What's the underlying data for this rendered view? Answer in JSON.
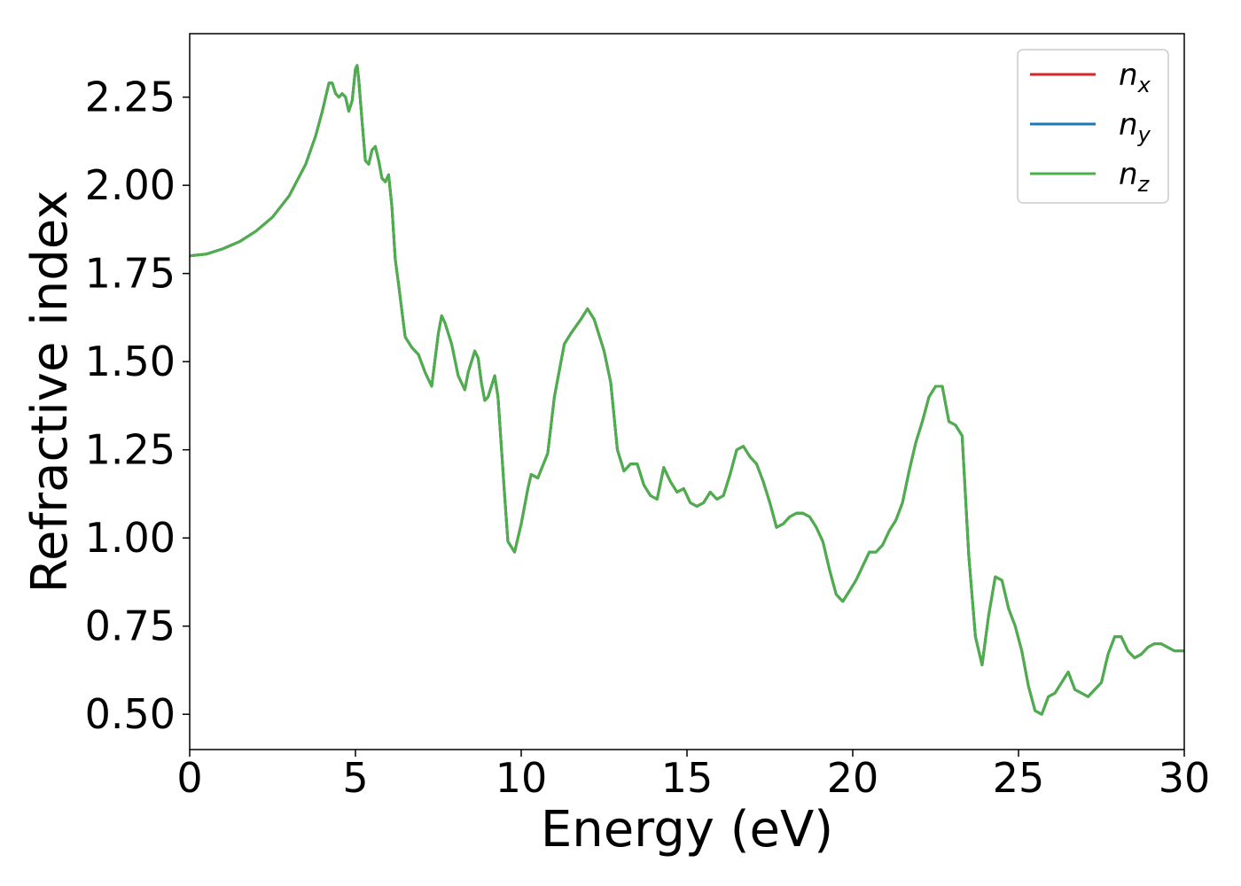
{
  "chart_data": {
    "type": "line",
    "xlabel": "Energy (eV)",
    "ylabel": "Refractive index",
    "xlim": [
      0,
      30
    ],
    "ylim": [
      0.4,
      2.43
    ],
    "grid": false,
    "legend_position": "top-right",
    "x_ticks": [
      "0",
      "5",
      "10",
      "15",
      "20",
      "25",
      "30"
    ],
    "y_ticks": [
      "0.50",
      "0.75",
      "1.00",
      "1.25",
      "1.50",
      "1.75",
      "2.00",
      "2.25"
    ],
    "series": [
      {
        "name": "n",
        "subscript": "x",
        "color": "#d62728"
      },
      {
        "name": "n",
        "subscript": "y",
        "color": "#1f77b4"
      },
      {
        "name": "n",
        "subscript": "z",
        "color": "#4daf4a"
      }
    ],
    "x": [
      0,
      0.5,
      1.0,
      1.5,
      2.0,
      2.5,
      3.0,
      3.5,
      3.8,
      4.0,
      4.2,
      4.3,
      4.4,
      4.5,
      4.6,
      4.7,
      4.8,
      4.9,
      5.0,
      5.05,
      5.1,
      5.2,
      5.3,
      5.4,
      5.5,
      5.6,
      5.7,
      5.8,
      5.9,
      6.0,
      6.1,
      6.2,
      6.3,
      6.5,
      6.7,
      6.9,
      7.1,
      7.3,
      7.5,
      7.6,
      7.7,
      7.9,
      8.1,
      8.3,
      8.4,
      8.6,
      8.7,
      8.8,
      8.9,
      9.0,
      9.2,
      9.3,
      9.5,
      9.6,
      9.8,
      10.0,
      10.2,
      10.3,
      10.5,
      10.8,
      11.0,
      11.3,
      11.5,
      11.8,
      12.0,
      12.2,
      12.5,
      12.7,
      12.9,
      13.1,
      13.3,
      13.5,
      13.7,
      13.9,
      14.1,
      14.3,
      14.5,
      14.7,
      14.9,
      15.1,
      15.3,
      15.5,
      15.7,
      15.9,
      16.1,
      16.3,
      16.5,
      16.7,
      16.9,
      17.1,
      17.3,
      17.5,
      17.7,
      17.9,
      18.1,
      18.3,
      18.5,
      18.7,
      18.9,
      19.1,
      19.3,
      19.5,
      19.7,
      19.9,
      20.1,
      20.3,
      20.5,
      20.7,
      20.9,
      21.1,
      21.3,
      21.5,
      21.7,
      21.9,
      22.1,
      22.3,
      22.5,
      22.7,
      22.9,
      23.1,
      23.3,
      23.5,
      23.7,
      23.9,
      24.1,
      24.3,
      24.5,
      24.7,
      24.9,
      25.1,
      25.3,
      25.5,
      25.7,
      25.9,
      26.1,
      26.3,
      26.5,
      26.7,
      26.9,
      27.1,
      27.3,
      27.5,
      27.7,
      27.9,
      28.1,
      28.3,
      28.5,
      28.7,
      28.9,
      29.1,
      29.3,
      29.5,
      29.7,
      29.9,
      30.0
    ],
    "y": [
      1.8,
      1.805,
      1.82,
      1.84,
      1.87,
      1.91,
      1.97,
      2.06,
      2.14,
      2.21,
      2.29,
      2.29,
      2.26,
      2.25,
      2.26,
      2.25,
      2.21,
      2.24,
      2.33,
      2.34,
      2.3,
      2.18,
      2.07,
      2.06,
      2.1,
      2.11,
      2.07,
      2.02,
      2.01,
      2.03,
      1.94,
      1.79,
      1.72,
      1.57,
      1.54,
      1.52,
      1.47,
      1.43,
      1.58,
      1.63,
      1.61,
      1.55,
      1.46,
      1.42,
      1.47,
      1.53,
      1.51,
      1.44,
      1.39,
      1.4,
      1.46,
      1.4,
      1.12,
      0.99,
      0.96,
      1.04,
      1.14,
      1.18,
      1.17,
      1.24,
      1.4,
      1.55,
      1.58,
      1.62,
      1.65,
      1.62,
      1.53,
      1.44,
      1.25,
      1.19,
      1.21,
      1.21,
      1.15,
      1.12,
      1.11,
      1.2,
      1.16,
      1.13,
      1.14,
      1.1,
      1.09,
      1.1,
      1.13,
      1.11,
      1.12,
      1.18,
      1.25,
      1.26,
      1.23,
      1.21,
      1.16,
      1.1,
      1.03,
      1.04,
      1.06,
      1.07,
      1.07,
      1.06,
      1.03,
      0.99,
      0.91,
      0.84,
      0.82,
      0.85,
      0.88,
      0.92,
      0.96,
      0.96,
      0.98,
      1.02,
      1.05,
      1.1,
      1.19,
      1.27,
      1.33,
      1.4,
      1.43,
      1.43,
      1.33,
      1.32,
      1.29,
      0.95,
      0.72,
      0.64,
      0.78,
      0.89,
      0.88,
      0.8,
      0.75,
      0.68,
      0.58,
      0.51,
      0.5,
      0.55,
      0.56,
      0.59,
      0.62,
      0.57,
      0.56,
      0.55,
      0.57,
      0.59,
      0.67,
      0.72,
      0.72,
      0.68,
      0.66,
      0.67,
      0.69,
      0.7,
      0.7,
      0.69,
      0.68,
      0.68,
      0.68
    ]
  }
}
